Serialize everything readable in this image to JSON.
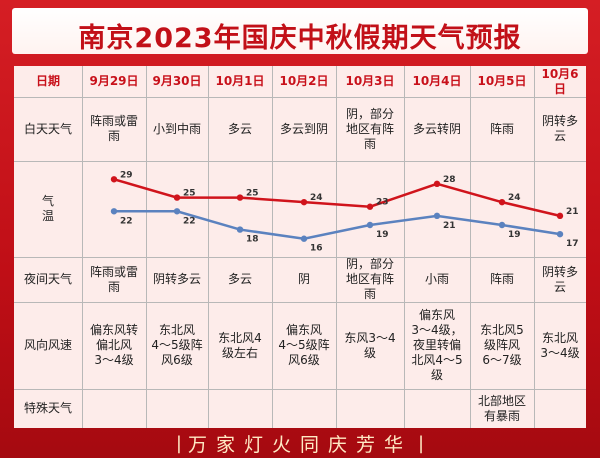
{
  "title": "南京2023年国庆中秋假期天气预报",
  "header": {
    "label": "日期",
    "dates": [
      "9月29日",
      "9月30日",
      "10月1日",
      "10月2日",
      "10月3日",
      "10月4日",
      "10月5日",
      "10月6日"
    ]
  },
  "rows": {
    "day_weather": {
      "label": "白天天气",
      "values": [
        "阵雨或雷\n雨",
        "小到中雨",
        "多云",
        "多云到阴",
        "阴，部分\n地区有阵\n雨",
        "多云转阴",
        "阵雨",
        "阴转多云"
      ]
    },
    "temperature": {
      "label": "气\n温"
    },
    "night_weather": {
      "label": "夜间天气",
      "values": [
        "阵雨或雷\n雨",
        "阴转多云",
        "多云",
        "阴",
        "阴，部分\n地区有阵\n雨",
        "小雨",
        "阵雨",
        "阴转多云"
      ]
    },
    "wind": {
      "label": "风向风速",
      "values": [
        "偏东风转\n偏北风\n3～4级",
        "东北风\n4～5级阵\n风6级",
        "东北风4\n级左右",
        "偏东风\n4～5级阵\n风6级",
        "东风3～4\n级",
        "偏东风\n3～4级，\n夜里转偏\n北风4～5\n级",
        "东北风5\n级阵风\n6～7级",
        "东北风\n3～4级"
      ]
    },
    "special": {
      "label": "特殊天气",
      "values": [
        "",
        "",
        "",
        "",
        "",
        "",
        "北部地区\n有暴雨",
        ""
      ]
    }
  },
  "chart_data": {
    "type": "line",
    "categories": [
      "9月29日",
      "9月30日",
      "10月1日",
      "10月2日",
      "10月3日",
      "10月4日",
      "10月5日",
      "10月6日"
    ],
    "series": [
      {
        "values": [
          29,
          25,
          25,
          24,
          23,
          28,
          24,
          21
        ],
        "color": "#d0141c"
      },
      {
        "values": [
          22,
          22,
          18,
          16,
          19,
          21,
          19,
          17
        ],
        "color": "#5b82bf"
      }
    ]
  },
  "footer": {
    "slogan": "万家灯火同庆芳华"
  },
  "colors": {
    "background": "#c8101a",
    "panel": "#fdecea",
    "title": "#c21018"
  }
}
